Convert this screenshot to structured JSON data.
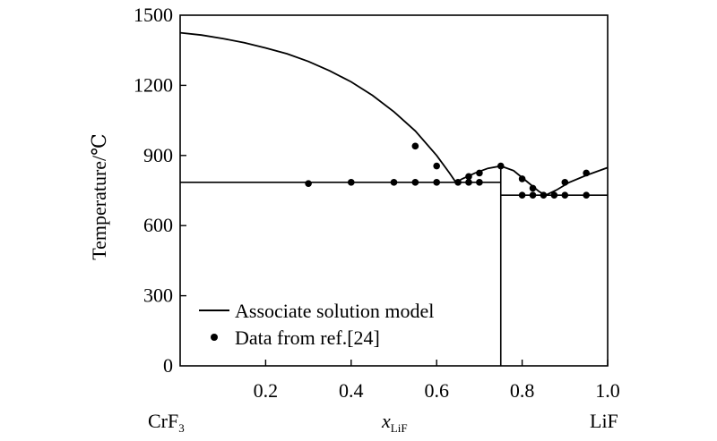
{
  "chart_data": {
    "type": "scatter",
    "ylabel": "Temperature/℃",
    "xlabel_main": "x",
    "xlabel_sub": "LiF",
    "xlim": [
      0,
      1.0
    ],
    "ylim": [
      0,
      1500
    ],
    "x_ticks": [
      {
        "value": 0.2,
        "label": "0.2"
      },
      {
        "value": 0.4,
        "label": "0.4"
      },
      {
        "value": 0.6,
        "label": "0.6"
      },
      {
        "value": 0.8,
        "label": "0.8"
      },
      {
        "value": 1.0,
        "label": "1.0"
      }
    ],
    "y_ticks": [
      {
        "value": 0,
        "label": "0"
      },
      {
        "value": 300,
        "label": "300"
      },
      {
        "value": 600,
        "label": "600"
      },
      {
        "value": 900,
        "label": "900"
      },
      {
        "value": 1200,
        "label": "1200"
      },
      {
        "value": 1500,
        "label": "1500"
      }
    ],
    "left_component": {
      "main": "CrF",
      "sub": "3"
    },
    "right_component": "LiF",
    "legend": {
      "line_label": "Associate solution model",
      "points_label": "Data from ref.[24]",
      "position": "lower-left"
    },
    "model": {
      "name": "Associate solution model",
      "liquidus": [
        {
          "x": 0.0,
          "y": 1425
        },
        {
          "x": 0.05,
          "y": 1415
        },
        {
          "x": 0.1,
          "y": 1400
        },
        {
          "x": 0.15,
          "y": 1382
        },
        {
          "x": 0.2,
          "y": 1360
        },
        {
          "x": 0.25,
          "y": 1335
        },
        {
          "x": 0.3,
          "y": 1302
        },
        {
          "x": 0.35,
          "y": 1262
        },
        {
          "x": 0.4,
          "y": 1215
        },
        {
          "x": 0.45,
          "y": 1157
        },
        {
          "x": 0.5,
          "y": 1087
        },
        {
          "x": 0.55,
          "y": 1005
        },
        {
          "x": 0.6,
          "y": 900
        },
        {
          "x": 0.63,
          "y": 825
        },
        {
          "x": 0.645,
          "y": 785
        },
        {
          "x": 0.66,
          "y": 800
        },
        {
          "x": 0.69,
          "y": 825
        },
        {
          "x": 0.72,
          "y": 845
        },
        {
          "x": 0.75,
          "y": 855
        },
        {
          "x": 0.78,
          "y": 835
        },
        {
          "x": 0.81,
          "y": 790
        },
        {
          "x": 0.84,
          "y": 745
        },
        {
          "x": 0.855,
          "y": 730
        },
        {
          "x": 0.88,
          "y": 752
        },
        {
          "x": 0.91,
          "y": 785
        },
        {
          "x": 0.95,
          "y": 815
        },
        {
          "x": 1.0,
          "y": 848
        }
      ],
      "eutectic_left": {
        "x1": 0.0,
        "x2": 0.75,
        "y": 785
      },
      "eutectic_right": {
        "x1": 0.75,
        "x2": 1.0,
        "y": 730
      },
      "compound_line": {
        "x": 0.75,
        "y1": 0,
        "y2": 855
      }
    },
    "points": [
      {
        "x": 0.3,
        "y": 780
      },
      {
        "x": 0.4,
        "y": 785
      },
      {
        "x": 0.5,
        "y": 785
      },
      {
        "x": 0.55,
        "y": 785
      },
      {
        "x": 0.55,
        "y": 940
      },
      {
        "x": 0.6,
        "y": 785
      },
      {
        "x": 0.6,
        "y": 855
      },
      {
        "x": 0.65,
        "y": 785
      },
      {
        "x": 0.675,
        "y": 785
      },
      {
        "x": 0.675,
        "y": 810
      },
      {
        "x": 0.7,
        "y": 785
      },
      {
        "x": 0.7,
        "y": 825
      },
      {
        "x": 0.75,
        "y": 855
      },
      {
        "x": 0.8,
        "y": 800
      },
      {
        "x": 0.8,
        "y": 730
      },
      {
        "x": 0.825,
        "y": 730
      },
      {
        "x": 0.825,
        "y": 760
      },
      {
        "x": 0.85,
        "y": 730
      },
      {
        "x": 0.875,
        "y": 730
      },
      {
        "x": 0.9,
        "y": 730
      },
      {
        "x": 0.9,
        "y": 785
      },
      {
        "x": 0.95,
        "y": 730
      },
      {
        "x": 0.95,
        "y": 825
      }
    ]
  }
}
